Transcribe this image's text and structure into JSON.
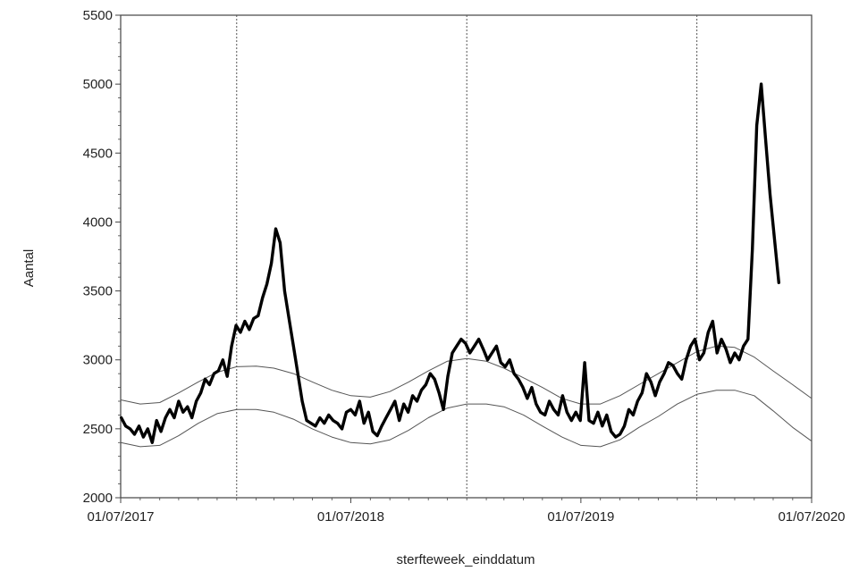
{
  "chart_data": {
    "type": "line",
    "xlabel": "sterfteweek_einddatum",
    "ylabel": "Aantal",
    "xlim": [
      "2017-07-01",
      "2020-07-01"
    ],
    "ylim": [
      2000,
      5500
    ],
    "x_ticks": [
      "01/07/2017",
      "01/07/2018",
      "01/07/2019",
      "01/07/2020"
    ],
    "x_tick_dates": [
      "2017-07-01",
      "2018-07-01",
      "2019-07-01",
      "2020-07-01"
    ],
    "y_ticks": [
      2000,
      2500,
      3000,
      3500,
      4000,
      4500,
      5000,
      5500
    ],
    "vertical_reference_lines": [
      "2018-01-01",
      "2019-01-01",
      "2020-01-01"
    ],
    "grid": false,
    "legend": "none",
    "series": [
      {
        "style": "thick-black",
        "x": [
          "2017-07-02",
          "2017-07-09",
          "2017-07-16",
          "2017-07-23",
          "2017-07-30",
          "2017-08-06",
          "2017-08-13",
          "2017-08-20",
          "2017-08-27",
          "2017-09-03",
          "2017-09-10",
          "2017-09-17",
          "2017-09-24",
          "2017-10-01",
          "2017-10-08",
          "2017-10-15",
          "2017-10-22",
          "2017-10-29",
          "2017-11-05",
          "2017-11-12",
          "2017-11-19",
          "2017-11-26",
          "2017-12-03",
          "2017-12-10",
          "2017-12-17",
          "2017-12-24",
          "2017-12-31",
          "2018-01-07",
          "2018-01-14",
          "2018-01-21",
          "2018-01-28",
          "2018-02-04",
          "2018-02-11",
          "2018-02-18",
          "2018-02-25",
          "2018-03-04",
          "2018-03-11",
          "2018-03-18",
          "2018-03-25",
          "2018-04-01",
          "2018-04-08",
          "2018-04-15",
          "2018-04-22",
          "2018-04-29",
          "2018-05-06",
          "2018-05-13",
          "2018-05-20",
          "2018-05-27",
          "2018-06-03",
          "2018-06-10",
          "2018-06-17",
          "2018-06-24",
          "2018-07-01",
          "2018-07-08",
          "2018-07-15",
          "2018-07-22",
          "2018-07-29",
          "2018-08-05",
          "2018-08-12",
          "2018-08-19",
          "2018-08-26",
          "2018-09-02",
          "2018-09-09",
          "2018-09-16",
          "2018-09-23",
          "2018-09-30",
          "2018-10-07",
          "2018-10-14",
          "2018-10-21",
          "2018-10-28",
          "2018-11-04",
          "2018-11-11",
          "2018-11-18",
          "2018-11-25",
          "2018-12-02",
          "2018-12-09",
          "2018-12-16",
          "2018-12-23",
          "2018-12-30",
          "2019-01-06",
          "2019-01-13",
          "2019-01-20",
          "2019-01-27",
          "2019-02-03",
          "2019-02-10",
          "2019-02-17",
          "2019-02-24",
          "2019-03-03",
          "2019-03-10",
          "2019-03-17",
          "2019-03-24",
          "2019-03-31",
          "2019-04-07",
          "2019-04-14",
          "2019-04-21",
          "2019-04-28",
          "2019-05-05",
          "2019-05-12",
          "2019-05-19",
          "2019-05-26",
          "2019-06-02",
          "2019-06-09",
          "2019-06-16",
          "2019-06-23",
          "2019-06-30",
          "2019-07-07",
          "2019-07-14",
          "2019-07-21",
          "2019-07-28",
          "2019-08-04",
          "2019-08-11",
          "2019-08-18",
          "2019-08-25",
          "2019-09-01",
          "2019-09-08",
          "2019-09-15",
          "2019-09-22",
          "2019-09-29",
          "2019-10-06",
          "2019-10-13",
          "2019-10-20",
          "2019-10-27",
          "2019-11-03",
          "2019-11-10",
          "2019-11-17",
          "2019-11-24",
          "2019-12-01",
          "2019-12-08",
          "2019-12-15",
          "2019-12-22",
          "2019-12-29",
          "2020-01-05",
          "2020-01-12",
          "2020-01-19",
          "2020-01-26",
          "2020-02-02",
          "2020-02-09",
          "2020-02-16",
          "2020-02-23",
          "2020-03-01",
          "2020-03-08",
          "2020-03-15",
          "2020-03-22",
          "2020-03-29",
          "2020-04-05",
          "2020-04-12",
          "2020-04-19",
          "2020-04-26",
          "2020-05-03",
          "2020-05-10"
        ],
        "y": [
          2580,
          2520,
          2500,
          2460,
          2520,
          2440,
          2500,
          2400,
          2560,
          2480,
          2580,
          2640,
          2580,
          2700,
          2620,
          2660,
          2580,
          2700,
          2760,
          2860,
          2820,
          2900,
          2920,
          3000,
          2880,
          3100,
          3250,
          3200,
          3280,
          3220,
          3300,
          3320,
          3450,
          3550,
          3700,
          3950,
          3850,
          3500,
          3300,
          3100,
          2900,
          2700,
          2560,
          2540,
          2520,
          2580,
          2540,
          2600,
          2560,
          2540,
          2500,
          2620,
          2640,
          2600,
          2700,
          2540,
          2620,
          2480,
          2450,
          2520,
          2580,
          2640,
          2700,
          2560,
          2680,
          2620,
          2740,
          2700,
          2780,
          2820,
          2900,
          2860,
          2760,
          2640,
          2880,
          3050,
          3100,
          3150,
          3120,
          3050,
          3100,
          3150,
          3080,
          3000,
          3050,
          3100,
          2980,
          2950,
          3000,
          2900,
          2860,
          2800,
          2720,
          2800,
          2680,
          2620,
          2600,
          2700,
          2640,
          2600,
          2740,
          2620,
          2560,
          2620,
          2560,
          2980,
          2560,
          2540,
          2620,
          2520,
          2600,
          2480,
          2440,
          2460,
          2520,
          2640,
          2600,
          2700,
          2760,
          2900,
          2840,
          2740,
          2840,
          2900,
          2980,
          2960,
          2900,
          2860,
          3000,
          3100,
          3150,
          3000,
          3050,
          3200,
          3280,
          3050,
          3150,
          3080,
          2980,
          3050,
          3000,
          3100,
          3150,
          3800,
          4700,
          5000,
          4600,
          4200,
          3880,
          3560
        ]
      },
      {
        "style": "thin-gray-upper-band",
        "x": [
          "2017-07-01",
          "2017-08-01",
          "2017-09-01",
          "2017-10-01",
          "2017-11-01",
          "2017-12-01",
          "2018-01-01",
          "2018-02-01",
          "2018-03-01",
          "2018-04-01",
          "2018-05-01",
          "2018-06-01",
          "2018-07-01",
          "2018-08-01",
          "2018-09-01",
          "2018-10-01",
          "2018-11-01",
          "2018-12-01",
          "2019-01-01",
          "2019-02-01",
          "2019-03-01",
          "2019-04-01",
          "2019-05-01",
          "2019-06-01",
          "2019-07-01",
          "2019-08-01",
          "2019-09-01",
          "2019-10-01",
          "2019-11-01",
          "2019-12-01",
          "2020-01-01",
          "2020-02-01",
          "2020-03-01",
          "2020-04-01",
          "2020-05-01",
          "2020-06-01",
          "2020-07-01"
        ],
        "y": [
          2710,
          2680,
          2690,
          2760,
          2840,
          2910,
          2950,
          2955,
          2940,
          2900,
          2840,
          2780,
          2740,
          2730,
          2770,
          2840,
          2920,
          2990,
          3010,
          2990,
          2940,
          2870,
          2800,
          2720,
          2680,
          2680,
          2740,
          2820,
          2900,
          2980,
          3060,
          3100,
          3090,
          3020,
          2920,
          2820,
          2720
        ]
      },
      {
        "style": "thin-gray-lower-band",
        "x": [
          "2017-07-01",
          "2017-08-01",
          "2017-09-01",
          "2017-10-01",
          "2017-11-01",
          "2017-12-01",
          "2018-01-01",
          "2018-02-01",
          "2018-03-01",
          "2018-04-01",
          "2018-05-01",
          "2018-06-01",
          "2018-07-01",
          "2018-08-01",
          "2018-09-01",
          "2018-10-01",
          "2018-11-01",
          "2018-12-01",
          "2019-01-01",
          "2019-02-01",
          "2019-03-01",
          "2019-04-01",
          "2019-05-01",
          "2019-06-01",
          "2019-07-01",
          "2019-08-01",
          "2019-09-01",
          "2019-10-01",
          "2019-11-01",
          "2019-12-01",
          "2020-01-01",
          "2020-02-01",
          "2020-03-01",
          "2020-04-01",
          "2020-05-01",
          "2020-06-01",
          "2020-07-01"
        ],
        "y": [
          2400,
          2370,
          2380,
          2450,
          2540,
          2610,
          2640,
          2640,
          2620,
          2570,
          2500,
          2440,
          2400,
          2390,
          2420,
          2490,
          2580,
          2650,
          2680,
          2680,
          2660,
          2600,
          2520,
          2440,
          2380,
          2370,
          2420,
          2510,
          2590,
          2680,
          2750,
          2780,
          2780,
          2740,
          2630,
          2510,
          2410
        ]
      }
    ]
  }
}
